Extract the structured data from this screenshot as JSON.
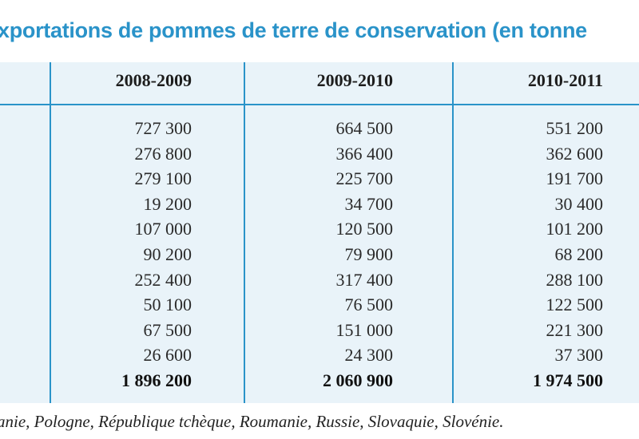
{
  "title": "xportations de pommes de terre de conservation (en tonne",
  "table": {
    "headers": [
      "2008-2009",
      "2009-2010",
      "2010-2011"
    ],
    "rows": [
      [
        "727 300",
        "664 500",
        "551 200"
      ],
      [
        "276 800",
        "366 400",
        "362 600"
      ],
      [
        "279 100",
        "225 700",
        "191 700"
      ],
      [
        "19 200",
        "34 700",
        "30 400"
      ],
      [
        "107 000",
        "120 500",
        "101 200"
      ],
      [
        "90 200",
        "79 900",
        "68 200"
      ],
      [
        "252 400",
        "317 400",
        "288 100"
      ],
      [
        "50 100",
        "76 500",
        "122 500"
      ],
      [
        "67 500",
        "151 000",
        "221 300"
      ],
      [
        "26 600",
        "24 300",
        "37 300"
      ]
    ],
    "totals": [
      "1 896 200",
      "2 060 900",
      "1 974 500"
    ]
  },
  "footnote": "anie, Pologne, République tchèque, Roumanie, Russie, Slovaquie, Slovénie.",
  "colors": {
    "accent": "#2a93c9",
    "table_background": "#e9f3f9"
  }
}
